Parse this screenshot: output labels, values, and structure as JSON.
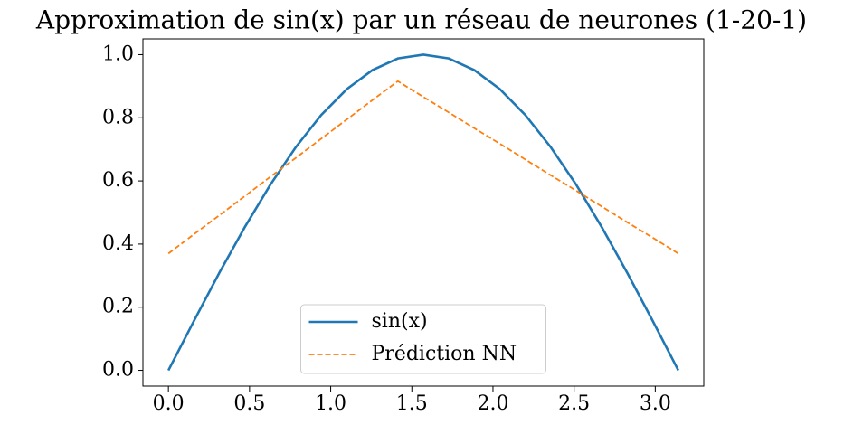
{
  "chart_data": {
    "type": "line",
    "title": "Approximation de sin(x) par un réseau de neurones (1-20-1)",
    "x": [
      0,
      0.157,
      0.314,
      0.471,
      0.628,
      0.785,
      0.942,
      1.1,
      1.257,
      1.414,
      1.571,
      1.728,
      1.885,
      2.042,
      2.199,
      2.356,
      2.513,
      2.67,
      2.827,
      2.985,
      3.142
    ],
    "series": [
      {
        "name": "sin(x)",
        "color": "#1f77b4",
        "style": "solid",
        "values": [
          0,
          0.156,
          0.309,
          0.454,
          0.588,
          0.707,
          0.809,
          0.891,
          0.951,
          0.988,
          1.0,
          0.988,
          0.951,
          0.891,
          0.809,
          0.707,
          0.588,
          0.454,
          0.309,
          0.156,
          0
        ]
      },
      {
        "name": "Prédiction NN",
        "color": "#ff7f0e",
        "style": "dashed",
        "values": [
          0.37,
          0.431,
          0.491,
          0.552,
          0.613,
          0.673,
          0.734,
          0.795,
          0.856,
          0.916,
          0.866,
          0.817,
          0.767,
          0.718,
          0.668,
          0.618,
          0.569,
          0.519,
          0.469,
          0.42,
          0.37
        ]
      }
    ],
    "xlim": [
      -0.157,
      3.299
    ],
    "ylim": [
      -0.05,
      1.05
    ],
    "xticks": [
      {
        "value": 0,
        "label": "0.0"
      },
      0.5,
      {
        "value": 1,
        "label": "1.0"
      },
      1.5,
      {
        "value": 2,
        "label": "2.0"
      },
      2.5,
      {
        "value": 3,
        "label": "3.0"
      }
    ],
    "yticks": [
      {
        "value": 0,
        "label": "0.0"
      },
      0.2,
      0.4,
      0.6,
      0.8,
      {
        "value": 1,
        "label": "1.0"
      }
    ],
    "grid": false,
    "legend": "lower center"
  }
}
